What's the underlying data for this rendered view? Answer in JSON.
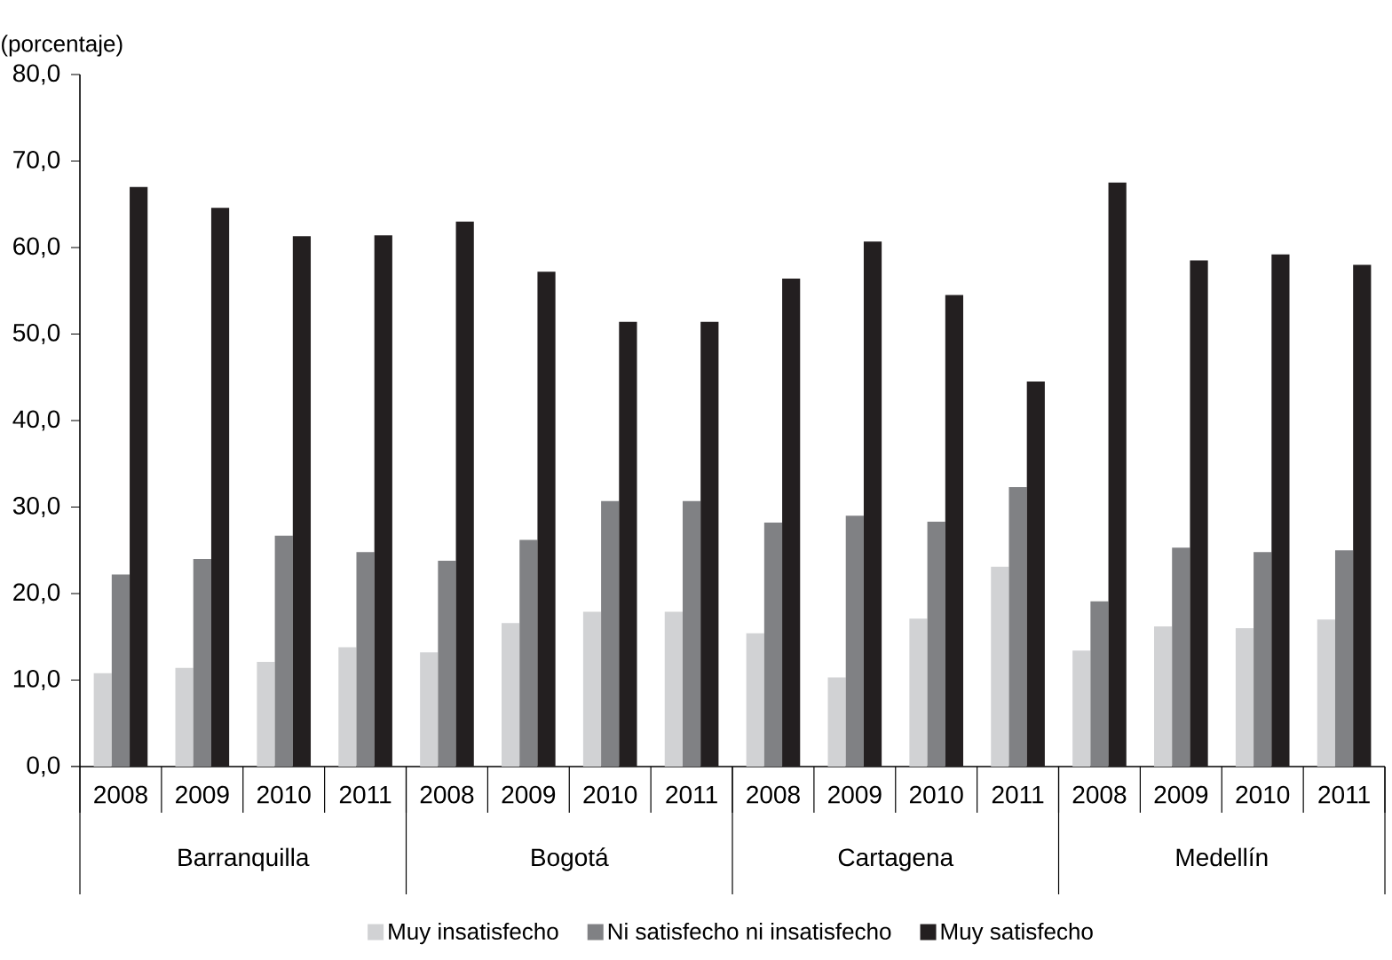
{
  "chart_data": {
    "type": "bar",
    "ylabel": "(porcentaje)",
    "categories": [
      "2008",
      "2009",
      "2010",
      "2011",
      "2008",
      "2009",
      "2010",
      "2011",
      "2008",
      "2009",
      "2010",
      "2011",
      "2008",
      "2009",
      "2010",
      "2011"
    ],
    "series": [
      {
        "name": "Muy insatisfecho",
        "color": "#d1d2d4",
        "values": [
          10.8,
          11.4,
          12.1,
          13.8,
          13.2,
          16.6,
          17.9,
          17.9,
          15.4,
          10.3,
          17.1,
          23.1,
          13.4,
          16.2,
          16.0,
          17.0
        ]
      },
      {
        "name": "Ni satisfecho ni insatisfecho",
        "color": "#808184",
        "values": [
          22.2,
          24.0,
          26.7,
          24.8,
          23.8,
          26.2,
          30.7,
          30.7,
          28.2,
          29.0,
          28.3,
          32.3,
          19.1,
          25.3,
          24.8,
          25.0
        ]
      },
      {
        "name": "Muy satisfecho",
        "color": "#231f20",
        "values": [
          67.0,
          64.6,
          61.3,
          61.4,
          63.0,
          57.2,
          51.4,
          51.4,
          56.4,
          60.7,
          54.5,
          44.5,
          67.5,
          58.5,
          59.2,
          58.0
        ]
      }
    ],
    "annotations": [
      "Barranquilla",
      "Bogotá",
      "Cartagena",
      "Medellín"
    ],
    "ylim": [
      0,
      80
    ],
    "yticks": [
      {
        "value": 0,
        "label": "0,0"
      },
      {
        "value": 10,
        "label": "10,0"
      },
      {
        "value": 20,
        "label": "20,0"
      },
      {
        "value": 30,
        "label": "30,0"
      },
      {
        "value": 40,
        "label": "40,0"
      },
      {
        "value": 50,
        "label": "50,0"
      },
      {
        "value": 60,
        "label": "60,0"
      },
      {
        "value": 70,
        "label": "70,0"
      },
      {
        "value": 80,
        "label": "80,0"
      }
    ],
    "legend": "bottom",
    "grid": false
  }
}
